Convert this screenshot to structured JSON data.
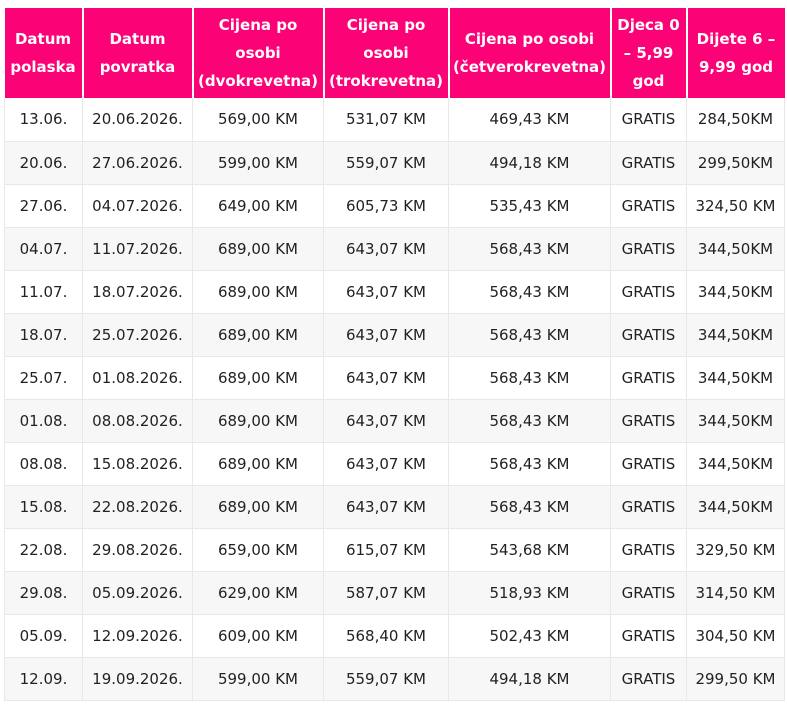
{
  "page": {
    "background": "#ffffff"
  },
  "table": {
    "accent_color": "#fb0276",
    "header_text_color": "#ffffff",
    "body_text_color": "#222222",
    "alt_row_color": "#f7f7f7",
    "border_color": "#e8e8e8",
    "columns": [
      "Datum polaska",
      "Datum povratka",
      "Cijena po osobi (dvokrevetna)",
      "Cijena po osobi (trokrevetna)",
      "Cijena po osobi (četverokrevetna)",
      "Djeca 0 – 5,99 god",
      "Dijete 6 – 9,99 god"
    ],
    "rows": [
      [
        "13.06.",
        "20.06.2026.",
        "569,00 KM",
        "531,07 KM",
        "469,43 KM",
        "GRATIS",
        "284,50KM"
      ],
      [
        "20.06.",
        "27.06.2026.",
        "599,00 KM",
        "559,07 KM",
        "494,18 KM",
        "GRATIS",
        "299,50KM"
      ],
      [
        "27.06.",
        "04.07.2026.",
        "649,00 KM",
        "605,73 KM",
        "535,43 KM",
        "GRATIS",
        "324,50 KM"
      ],
      [
        "04.07.",
        "11.07.2026.",
        "689,00 KM",
        "643,07 KM",
        "568,43 KM",
        "GRATIS",
        "344,50KM"
      ],
      [
        "11.07.",
        "18.07.2026.",
        "689,00 KM",
        "643,07 KM",
        "568,43 KM",
        "GRATIS",
        "344,50KM"
      ],
      [
        "18.07.",
        "25.07.2026.",
        "689,00 KM",
        "643,07 KM",
        "568,43 KM",
        "GRATIS",
        "344,50KM"
      ],
      [
        "25.07.",
        "01.08.2026.",
        "689,00 KM",
        "643,07 KM",
        "568,43 KM",
        "GRATIS",
        "344,50KM"
      ],
      [
        "01.08.",
        "08.08.2026.",
        "689,00 KM",
        "643,07 KM",
        "568,43 KM",
        "GRATIS",
        "344,50KM"
      ],
      [
        "08.08.",
        "15.08.2026.",
        "689,00 KM",
        "643,07 KM",
        "568,43 KM",
        "GRATIS",
        "344,50KM"
      ],
      [
        "15.08.",
        "22.08.2026.",
        "689,00 KM",
        "643,07 KM",
        "568,43 KM",
        "GRATIS",
        "344,50KM"
      ],
      [
        "22.08.",
        "29.08.2026.",
        "659,00 KM",
        "615,07 KM",
        "543,68 KM",
        "GRATIS",
        "329,50 KM"
      ],
      [
        "29.08.",
        "05.09.2026.",
        "629,00 KM",
        "587,07 KM",
        "518,93 KM",
        "GRATIS",
        "314,50 KM"
      ],
      [
        "05.09.",
        "12.09.2026.",
        "609,00 KM",
        "568,40 KM",
        "502,43 KM",
        "GRATIS",
        "304,50 KM"
      ],
      [
        "12.09.",
        "19.09.2026.",
        "599,00 KM",
        "559,07 KM",
        "494,18 KM",
        "GRATIS",
        "299,50 KM"
      ]
    ]
  }
}
